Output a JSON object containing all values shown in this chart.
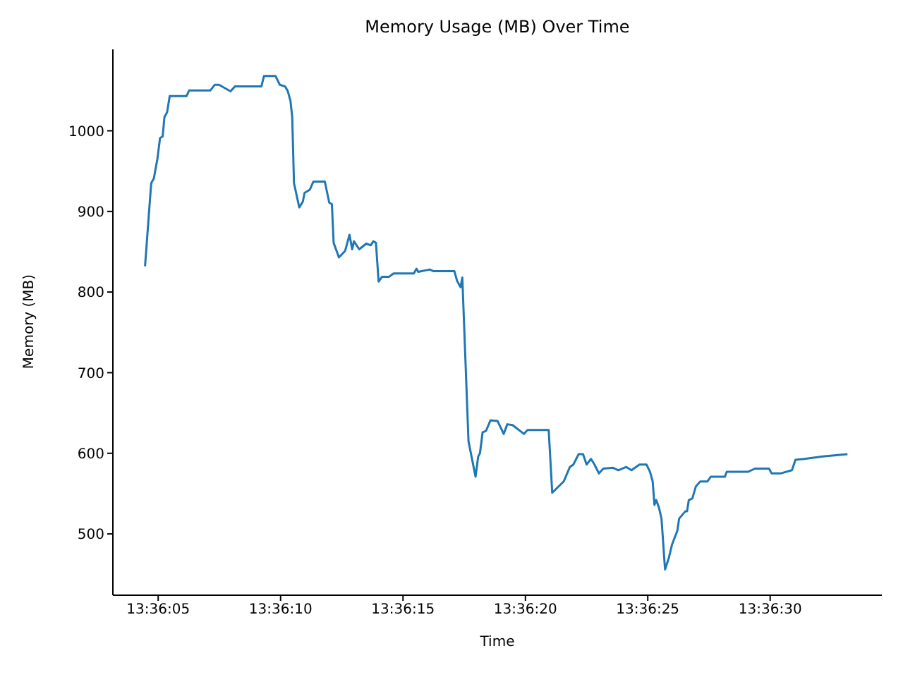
{
  "chart_data": {
    "type": "line",
    "title": "Memory Usage (MB) Over Time",
    "xlabel": "Time",
    "ylabel": "Memory (MB)",
    "xlim": [
      13.600875,
      13.6096
    ],
    "ylim": [
      424,
      1101
    ],
    "xticks": [
      {
        "value": 13.601389,
        "label": "13:36:05"
      },
      {
        "value": 13.602778,
        "label": "13:36:10"
      },
      {
        "value": 13.604167,
        "label": "13:36:15"
      },
      {
        "value": 13.605556,
        "label": "13:36:20"
      },
      {
        "value": 13.606944,
        "label": "13:36:25"
      },
      {
        "value": 13.608333,
        "label": "13:36:30"
      }
    ],
    "yticks": [
      500,
      600,
      700,
      800,
      900,
      1000
    ],
    "grid": false,
    "legend": false,
    "marker": "none",
    "line_style": "solid",
    "x": [
      13.60124,
      13.60129,
      13.60131,
      13.60134,
      13.60137,
      13.60138,
      13.60141,
      13.60144,
      13.60146,
      13.60149,
      13.60152,
      13.60171,
      13.60174,
      13.60198,
      13.60203,
      13.60208,
      13.60221,
      13.60226,
      13.60256,
      13.60259,
      13.60272,
      13.60277,
      13.60283,
      13.60286,
      13.60289,
      13.60291,
      13.60293,
      13.60299,
      13.60303,
      13.60305,
      13.60311,
      13.60315,
      13.60328,
      13.60333,
      13.60336,
      13.60338,
      13.60344,
      13.60351,
      13.60356,
      13.60359,
      13.60361,
      13.60367,
      13.60375,
      13.6038,
      13.60383,
      13.60386,
      13.60389,
      13.60393,
      13.60401,
      13.60406,
      13.60429,
      13.60432,
      13.60434,
      13.60447,
      13.60451,
      13.60475,
      13.60478,
      13.60482,
      13.60484,
      13.60491,
      13.60499,
      13.60502,
      13.60504,
      13.60507,
      13.60511,
      13.60516,
      13.60524,
      13.60531,
      13.60535,
      13.60541,
      13.60554,
      13.60558,
      13.60582,
      13.60586,
      13.60599,
      13.60606,
      13.6061,
      13.60616,
      13.60621,
      13.60625,
      13.6063,
      13.60634,
      13.60639,
      13.60644,
      13.60655,
      13.60661,
      13.6067,
      13.60676,
      13.60685,
      13.60693,
      13.60697,
      13.607,
      13.60702,
      13.60704,
      13.60707,
      13.6071,
      13.60714,
      13.60718,
      13.60722,
      13.60728,
      13.6073,
      13.60737,
      13.60739,
      13.60741,
      13.60745,
      13.60749,
      13.60754,
      13.60762,
      13.60766,
      13.60782,
      13.60784,
      13.60808,
      13.60816,
      13.60832,
      13.60835,
      13.60845,
      13.60858,
      13.60862,
      13.60872,
      13.60893,
      13.60921
    ],
    "series": [
      {
        "color": "#1f77b4",
        "values": [
          832,
          906,
          935,
          941,
          959,
          965,
          991,
          993,
          1017,
          1023,
          1043,
          1043,
          1050,
          1050,
          1057,
          1057,
          1049,
          1055,
          1055,
          1068,
          1068,
          1057,
          1055,
          1049,
          1037,
          1017,
          935,
          905,
          912,
          923,
          927,
          937,
          937,
          911,
          909,
          861,
          843,
          851,
          871,
          853,
          863,
          853,
          860,
          858,
          863,
          861,
          813,
          819,
          819,
          823,
          823,
          829,
          825,
          828,
          826,
          826,
          814,
          806,
          818,
          615,
          571,
          596,
          600,
          626,
          628,
          641,
          640,
          624,
          636,
          635,
          624,
          629,
          629,
          551,
          565,
          583,
          586,
          599,
          599,
          586,
          593,
          586,
          575,
          581,
          582,
          579,
          583,
          579,
          586,
          586,
          577,
          565,
          536,
          542,
          533,
          519,
          456,
          469,
          487,
          504,
          519,
          528,
          528,
          542,
          544,
          559,
          565,
          565,
          571,
          571,
          577,
          577,
          581,
          581,
          575,
          575,
          579,
          592,
          593,
          596,
          599
        ]
      }
    ]
  }
}
